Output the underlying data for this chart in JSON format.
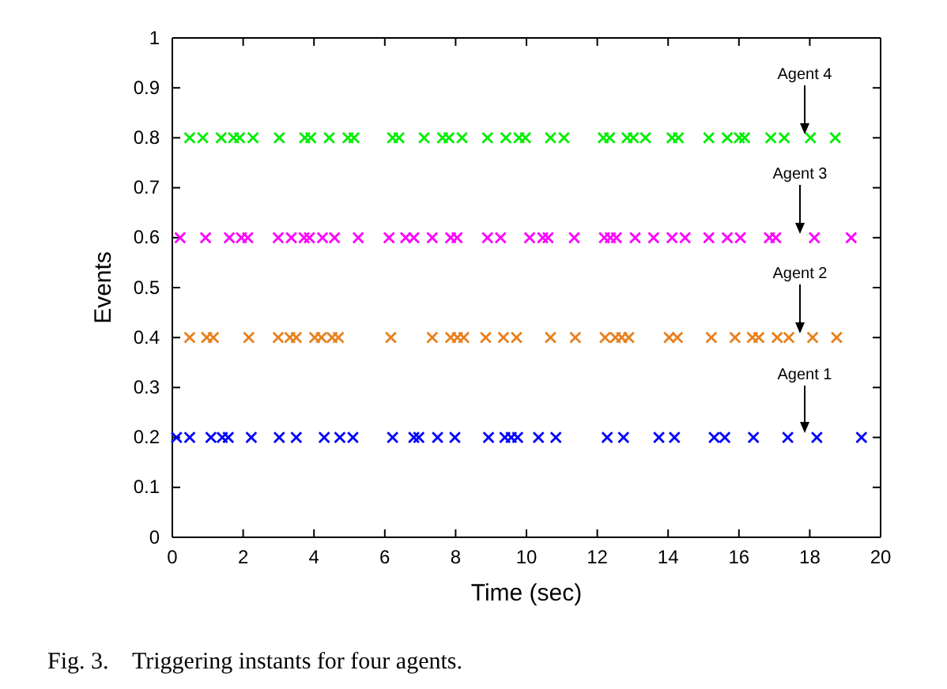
{
  "chart_data": {
    "type": "scatter",
    "xlabel": "Time (sec)",
    "ylabel": "Events",
    "xlim": [
      0,
      20
    ],
    "ylim": [
      0,
      1
    ],
    "xticks": [
      0,
      2,
      4,
      6,
      8,
      10,
      12,
      14,
      16,
      18,
      20
    ],
    "yticks": [
      0,
      0.1,
      0.2,
      0.3,
      0.4,
      0.5,
      0.6,
      0.7,
      0.8,
      0.9,
      1
    ],
    "marker": "cross",
    "grid": false,
    "series": [
      {
        "color": "#00ee00",
        "x": [
          0.49,
          0.86,
          1.38,
          1.73,
          1.9,
          2.28,
          3.02,
          3.74,
          3.91,
          4.43,
          4.96,
          5.13,
          6.22,
          6.4,
          7.11,
          7.63,
          7.81,
          8.18,
          8.9,
          9.42,
          9.79,
          9.97,
          10.68,
          11.06,
          12.17,
          12.35,
          12.84,
          13.02,
          13.36,
          14.11,
          14.29,
          15.15,
          15.67,
          16.01,
          16.16,
          16.9,
          17.28,
          18.02,
          18.72
        ],
        "values": [
          0.8,
          0.8,
          0.8,
          0.8,
          0.8,
          0.8,
          0.8,
          0.8,
          0.8,
          0.8,
          0.8,
          0.8,
          0.8,
          0.8,
          0.8,
          0.8,
          0.8,
          0.8,
          0.8,
          0.8,
          0.8,
          0.8,
          0.8,
          0.8,
          0.8,
          0.8,
          0.8,
          0.8,
          0.8,
          0.8,
          0.8,
          0.8,
          0.8,
          0.8,
          0.8,
          0.8,
          0.8,
          0.8,
          0.8
        ]
      },
      {
        "color": "#ff00ff",
        "x": [
          0.22,
          0.94,
          1.61,
          1.95,
          2.13,
          2.99,
          3.36,
          3.72,
          3.87,
          4.24,
          4.58,
          5.25,
          6.12,
          6.59,
          6.82,
          7.34,
          7.86,
          8.04,
          8.9,
          9.27,
          10.09,
          10.46,
          10.61,
          11.35,
          12.2,
          12.37,
          12.54,
          13.07,
          13.59,
          14.11,
          14.48,
          15.15,
          15.67,
          16.04,
          16.86,
          17.04,
          18.13,
          19.17
        ],
        "values": [
          0.6,
          0.6,
          0.6,
          0.6,
          0.6,
          0.6,
          0.6,
          0.6,
          0.6,
          0.6,
          0.6,
          0.6,
          0.6,
          0.6,
          0.6,
          0.6,
          0.6,
          0.6,
          0.6,
          0.6,
          0.6,
          0.6,
          0.6,
          0.6,
          0.6,
          0.6,
          0.6,
          0.6,
          0.6,
          0.6,
          0.6,
          0.6,
          0.6,
          0.6,
          0.6,
          0.6,
          0.6,
          0.6
        ]
      },
      {
        "color": "#e8801e",
        "x": [
          0.49,
          0.97,
          1.16,
          2.16,
          2.99,
          3.32,
          3.5,
          4.02,
          4.21,
          4.51,
          4.69,
          6.17,
          7.34,
          7.86,
          8.05,
          8.23,
          8.85,
          9.35,
          9.72,
          10.68,
          11.38,
          12.22,
          12.51,
          12.69,
          12.89,
          14.03,
          14.26,
          15.22,
          15.89,
          16.38,
          16.56,
          17.08,
          17.41,
          18.08,
          18.76
        ],
        "values": [
          0.4,
          0.4,
          0.4,
          0.4,
          0.4,
          0.4,
          0.4,
          0.4,
          0.4,
          0.4,
          0.4,
          0.4,
          0.4,
          0.4,
          0.4,
          0.4,
          0.4,
          0.4,
          0.4,
          0.4,
          0.4,
          0.4,
          0.4,
          0.4,
          0.4,
          0.4,
          0.4,
          0.4,
          0.4,
          0.4,
          0.4,
          0.4,
          0.4,
          0.4,
          0.4
        ]
      },
      {
        "color": "#0000ff",
        "x": [
          0.12,
          0.49,
          1.09,
          1.41,
          1.58,
          2.23,
          3.02,
          3.5,
          4.29,
          4.73,
          5.1,
          6.22,
          6.82,
          6.96,
          7.49,
          7.98,
          8.93,
          9.39,
          9.57,
          9.75,
          10.34,
          10.83,
          12.28,
          12.74,
          13.74,
          14.18,
          15.3,
          15.6,
          16.41,
          17.38,
          18.2,
          19.46
        ],
        "values": [
          0.2,
          0.2,
          0.2,
          0.2,
          0.2,
          0.2,
          0.2,
          0.2,
          0.2,
          0.2,
          0.2,
          0.2,
          0.2,
          0.2,
          0.2,
          0.2,
          0.2,
          0.2,
          0.2,
          0.2,
          0.2,
          0.2,
          0.2,
          0.2,
          0.2,
          0.2,
          0.2,
          0.2,
          0.2,
          0.2,
          0.2,
          0.2
        ]
      }
    ],
    "annotations": [
      "Agent 4",
      "Agent 3",
      "Agent 2",
      "Agent 1",
      "Fig. 3.    Triggering instants for four agents."
    ]
  }
}
